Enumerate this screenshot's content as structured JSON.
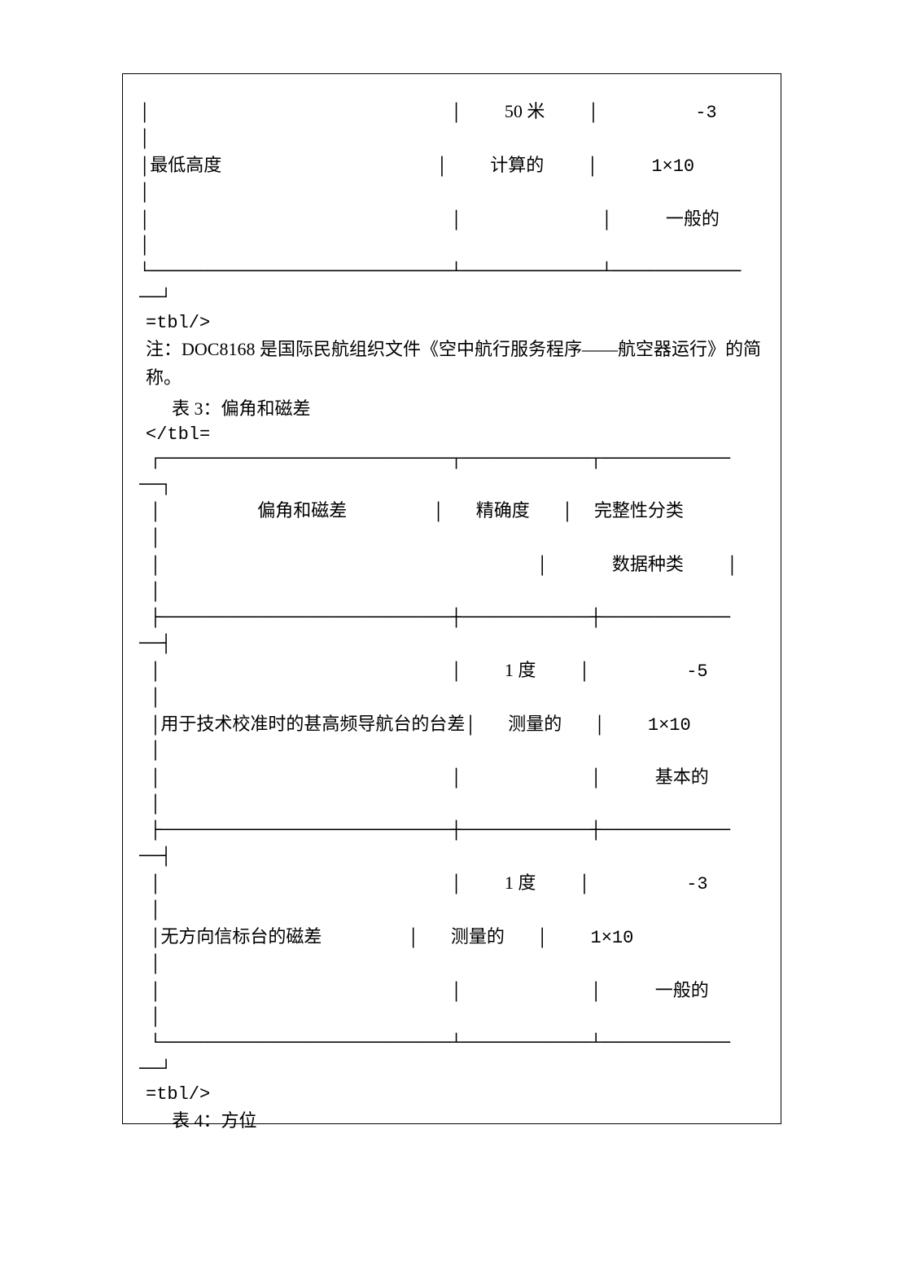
{
  "text_color": "#000000",
  "background_color": "#ffffff",
  "border_color": "#000000",
  "font_size_pt": 16,
  "table1": {
    "row": {
      "label": "最低高度",
      "col2_top": "50 米",
      "col2_mid": "计算的",
      "col3_top": "-3",
      "col3_mid": "1×10",
      "col3_bot": "一般的"
    },
    "close_tag": "=tbl/>",
    "note": "注：DOC8168 是国际民航组织文件《空中航行服务程序——航空器运行》的简称。"
  },
  "table3": {
    "caption": "表 3：偏角和磁差",
    "open_tag": "</tbl=",
    "header": {
      "col1": "偏角和磁差",
      "col2": "精确度",
      "col3": "完整性分类",
      "sub": "数据种类"
    },
    "rows": [
      {
        "label": "用于技术校准时的甚高频导航台的台差",
        "col2_top": "1 度",
        "col2_mid": "测量的",
        "col3_top": "-5",
        "col3_mid": "1×10",
        "col3_bot": "基本的"
      },
      {
        "label": "无方向信标台的磁差",
        "col2_top": "1 度",
        "col2_mid": "测量的",
        "col3_top": "-3",
        "col3_mid": "1×10",
        "col3_bot": "一般的"
      }
    ],
    "close_tag": "=tbl/>"
  },
  "table4": {
    "caption": "表 4：方位"
  }
}
